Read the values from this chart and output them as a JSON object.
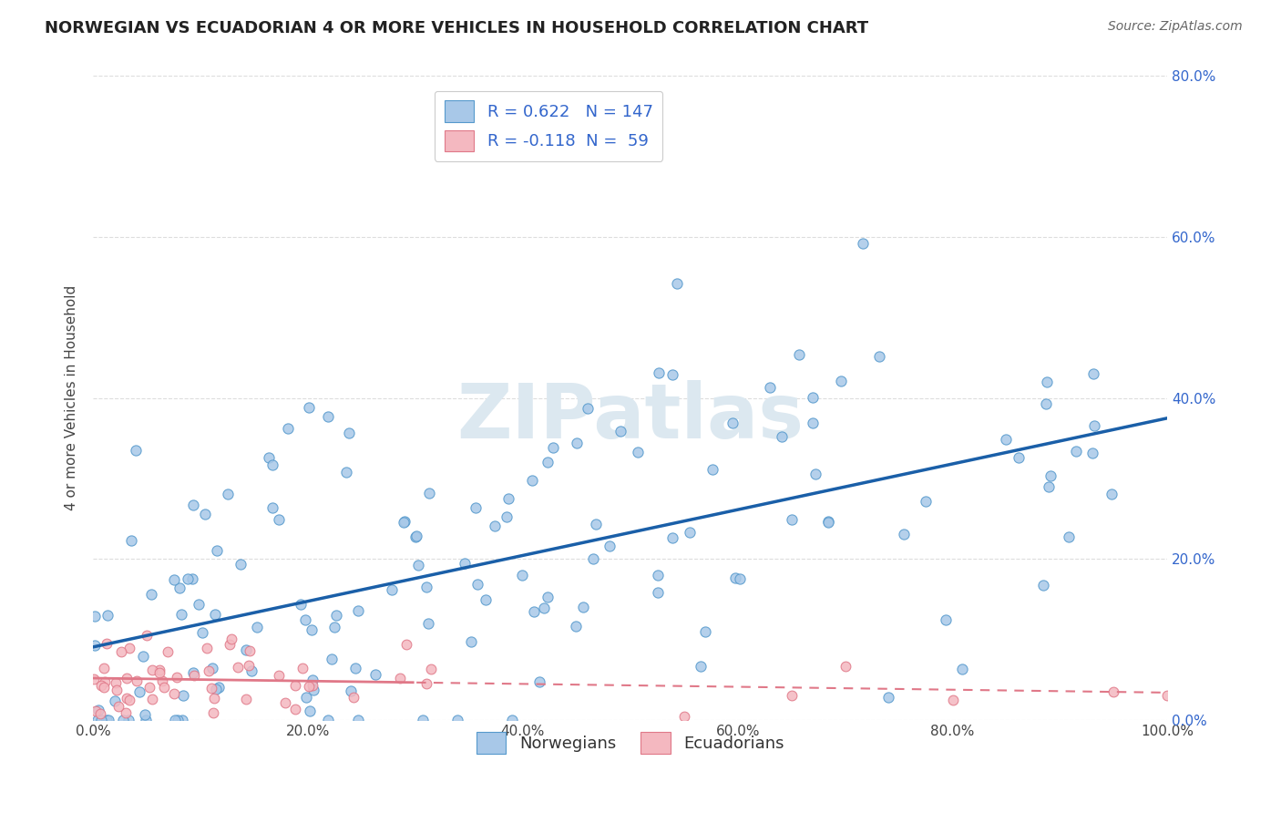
{
  "title": "NORWEGIAN VS ECUADORIAN 4 OR MORE VEHICLES IN HOUSEHOLD CORRELATION CHART",
  "source": "Source: ZipAtlas.com",
  "ylabel_label": "4 or more Vehicles in Household",
  "legend_norwegian": "Norwegians",
  "legend_ecuadorian": "Ecuadorians",
  "norwegian_color": "#a8c8e8",
  "norwegian_edge_color": "#5599cc",
  "ecuadorian_color": "#f4b8c0",
  "ecuadorian_edge_color": "#e07888",
  "norwegian_line_color": "#1a5fa8",
  "ecuadorian_line_color": "#e07888",
  "R_norwegian": 0.622,
  "N_norwegian": 147,
  "R_ecuadorian": -0.118,
  "N_ecuadorian": 59,
  "xlim": [
    0,
    100
  ],
  "ylim": [
    0,
    80
  ],
  "xtick_values": [
    0,
    20,
    40,
    60,
    80,
    100
  ],
  "xtick_labels": [
    "0.0%",
    "20.0%",
    "40.0%",
    "60.0%",
    "80.0%",
    "100.0%"
  ],
  "ytick_values": [
    0,
    20,
    40,
    60,
    80
  ],
  "ytick_right_labels": [
    "0.0%",
    "20.0%",
    "40.0%",
    "60.0%",
    "80.0%"
  ],
  "background_color": "#ffffff",
  "grid_color": "#dddddd",
  "title_fontsize": 13,
  "source_fontsize": 10,
  "watermark_color": "#dce8f0",
  "watermark_fontsize": 60,
  "watermark_text": "ZIPatlas"
}
